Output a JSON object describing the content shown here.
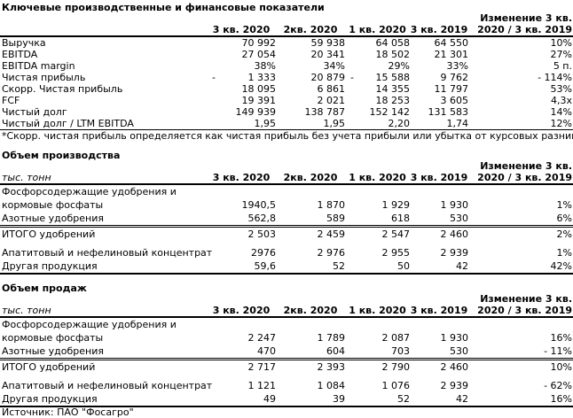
{
  "meta": {
    "background": "#ffffff",
    "text_color": "#000000",
    "rule_color": "#000000"
  },
  "columns": {
    "c1": "3 кв. 2020",
    "c2": "2кв. 2020",
    "c3": "1 кв. 2020",
    "c4": "3 кв. 2019"
  },
  "change": {
    "line1": "Изменение 3 кв.",
    "line2": "2020 / 3 кв. 2019"
  },
  "t1": {
    "title": "Ключевые производственные и финансовые показатели",
    "unit_label": "",
    "rows": [
      {
        "label": "Выручка",
        "values": [
          "70 992",
          "59 938",
          "64 058",
          "64 550",
          "10%"
        ]
      },
      {
        "label": "EBITDA",
        "values": [
          "27 054",
          "20 341",
          "18 502",
          "21 301",
          "27%"
        ]
      },
      {
        "label": "EBITDA margin",
        "values": [
          "38%",
          "34%",
          "29%",
          "33%",
          "5 п."
        ]
      },
      {
        "label": "Чистая прибыль",
        "values": [
          "- 1 333",
          "20 879",
          "- 15 588",
          "9 762",
          "- 114%"
        ]
      },
      {
        "label": "Скорр. Чистая прибыль",
        "values": [
          "18 095",
          "6 861",
          "14 355",
          "11 797",
          "53%"
        ]
      },
      {
        "label": "FCF",
        "values": [
          "19 391",
          "2 021",
          "18 253",
          "3 605",
          "4,3x"
        ]
      },
      {
        "label": "Чистый долг",
        "values": [
          "149 939",
          "138 787",
          "152 142",
          "131 583",
          "14%"
        ]
      },
      {
        "label": "Чистый долг / LTM EBITDA",
        "values": [
          "1,95",
          "1,95",
          "2,20",
          "1,74",
          "12%"
        ]
      }
    ],
    "footnote": "*Скорр. чистая прибыль определяется как чистая прибыль без учета прибыли или убытка от курсовых разниц"
  },
  "t2": {
    "title": "Объем производства",
    "unit_label": "тыс. тонн",
    "rows": [
      {
        "label_line1": "Фосфорсодержащие удобрения и",
        "label_line2": "кормовые фосфаты",
        "values": [
          "1940,5",
          "1 870",
          "1 929",
          "1 930",
          "1%"
        ]
      },
      {
        "label": "Азотные удобрения",
        "values": [
          "562,8",
          "589",
          "618",
          "530",
          "6%"
        ]
      },
      {
        "label": "ИТОГО удобрений",
        "values": [
          "2 503",
          "2 459",
          "2 547",
          "2 460",
          "2%"
        ]
      },
      {
        "label": "Апатитовый и нефелиновый концентрат",
        "values": [
          "2976",
          "2 976",
          "2 955",
          "2 939",
          "1%"
        ]
      },
      {
        "label": "Другая продукция",
        "values": [
          "59,6",
          "52",
          "50",
          "42",
          "42%"
        ]
      }
    ]
  },
  "t3": {
    "title": "Объем продаж",
    "unit_label": "тыс. тонн",
    "rows": [
      {
        "label_line1": "Фосфорсодержащие удобрения и",
        "label_line2": "кормовые фосфаты",
        "values": [
          "2 247",
          "1 789",
          "2 087",
          "1 930",
          "16%"
        ]
      },
      {
        "label": "Азотные удобрения",
        "values": [
          "470",
          "604",
          "703",
          "530",
          "- 11%"
        ]
      },
      {
        "label": "ИТОГО удобрений",
        "values": [
          "2 717",
          "2 393",
          "2 790",
          "2 460",
          "10%"
        ]
      },
      {
        "label": "Апатитовый и нефелиновый концентрат",
        "values": [
          "1 121",
          "1 084",
          "1 076",
          "2 939",
          "- 62%"
        ]
      },
      {
        "label": "Другая продукция",
        "values": [
          "49",
          "39",
          "52",
          "42",
          "16%"
        ]
      }
    ]
  },
  "source": "Источник: ПАО \"Фосагро\""
}
